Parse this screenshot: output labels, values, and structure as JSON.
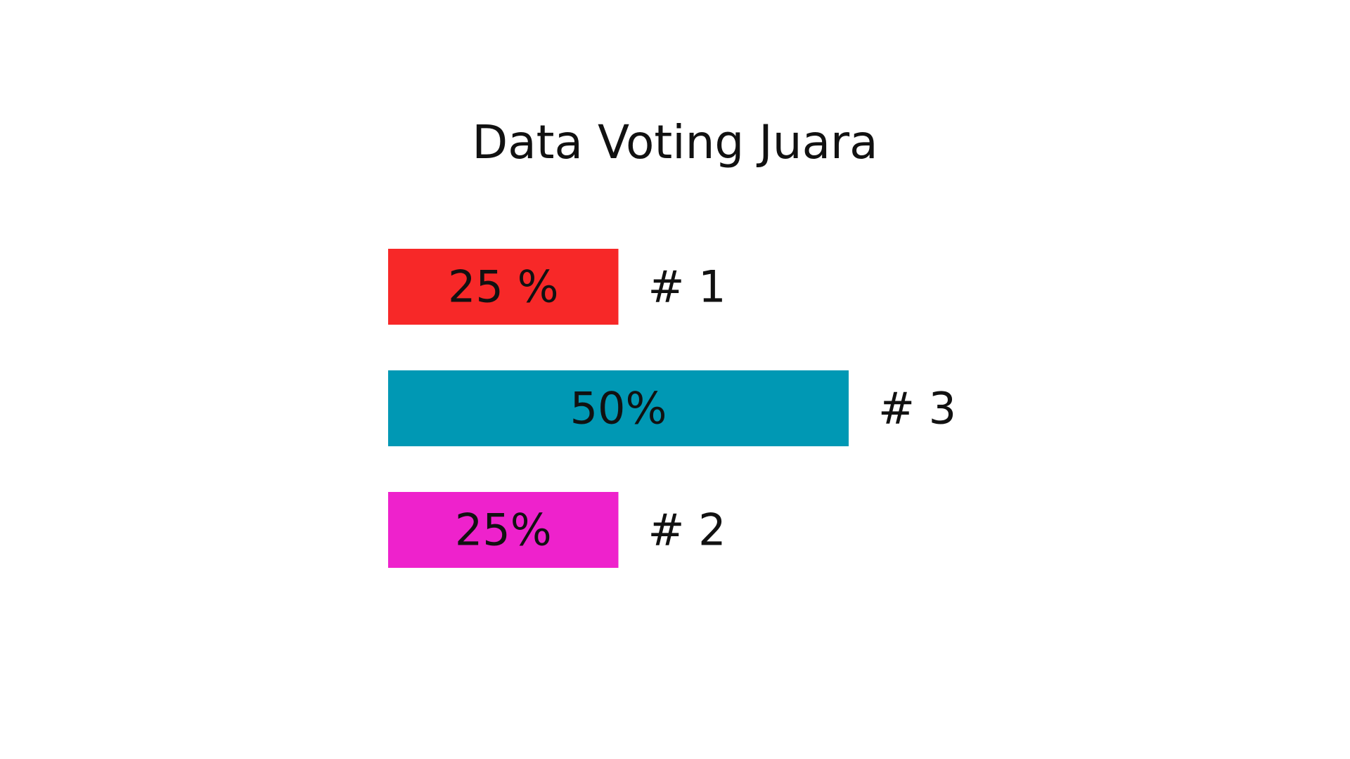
{
  "chart_data": {
    "type": "bar",
    "orientation": "horizontal",
    "title": "Data Voting Juara",
    "grid": false,
    "legend": "none",
    "xlim": [
      0,
      50
    ],
    "bars": [
      {
        "value": 25,
        "value_label": "25 %",
        "rank_label": "# 1",
        "color": "#f72828"
      },
      {
        "value": 50,
        "value_label": "50%",
        "rank_label": "# 3",
        "color": "#0098b4"
      },
      {
        "value": 25,
        "value_label": "25%",
        "rank_label": "# 2",
        "color": "#ee22cc"
      }
    ]
  }
}
